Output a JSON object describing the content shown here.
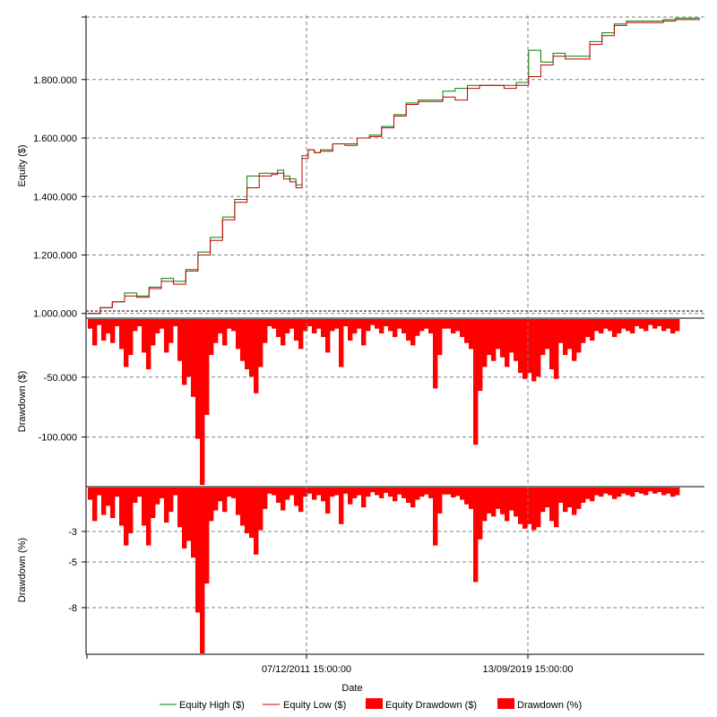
{
  "chart_data": [
    {
      "type": "line",
      "panel": "equity",
      "ylabel": "Equity ($)",
      "ylim": [
        990000,
        2020000
      ],
      "yticks": [
        1000000,
        1200000,
        1400000,
        1600000,
        1800000
      ],
      "ytick_labels": [
        "1.000.000",
        "1.200.000",
        "1.400.000",
        "1.600.000",
        "1.800.000"
      ],
      "x": [
        0,
        2,
        4,
        6,
        8,
        10,
        12,
        14,
        16,
        18,
        20,
        22,
        24,
        26,
        28,
        30,
        31,
        32,
        33,
        34,
        35,
        36,
        37,
        38,
        40,
        42,
        44,
        46,
        48,
        50,
        52,
        54,
        56,
        58,
        60,
        62,
        64,
        66,
        68,
        70,
        72,
        74,
        76,
        78,
        80,
        82,
        84,
        86,
        88,
        90,
        92,
        94,
        96,
        98,
        100
      ],
      "series": [
        {
          "name": "Equity High ($)",
          "color": "#008000",
          "values": [
            1000000,
            1020000,
            1040000,
            1070000,
            1060000,
            1090000,
            1120000,
            1110000,
            1150000,
            1210000,
            1260000,
            1330000,
            1390000,
            1470000,
            1480000,
            1480000,
            1490000,
            1470000,
            1460000,
            1440000,
            1540000,
            1560000,
            1550000,
            1560000,
            1580000,
            1580000,
            1600000,
            1610000,
            1640000,
            1680000,
            1720000,
            1730000,
            1730000,
            1760000,
            1770000,
            1780000,
            1780000,
            1780000,
            1780000,
            1790000,
            1900000,
            1860000,
            1890000,
            1880000,
            1880000,
            1930000,
            1960000,
            1990000,
            2000000,
            2000000,
            2000000,
            2005000,
            2010000,
            2010000,
            2010000
          ]
        },
        {
          "name": "Equity Low ($)",
          "color": "#c00000",
          "values": [
            1000000,
            1020000,
            1040000,
            1060000,
            1055000,
            1085000,
            1110000,
            1100000,
            1145000,
            1200000,
            1250000,
            1320000,
            1380000,
            1430000,
            1470000,
            1475000,
            1480000,
            1460000,
            1450000,
            1430000,
            1530000,
            1560000,
            1550000,
            1555000,
            1580000,
            1575000,
            1600000,
            1605000,
            1635000,
            1675000,
            1715000,
            1725000,
            1725000,
            1740000,
            1730000,
            1770000,
            1780000,
            1780000,
            1770000,
            1780000,
            1810000,
            1850000,
            1880000,
            1870000,
            1870000,
            1920000,
            1950000,
            1985000,
            1995000,
            1995000,
            1995000,
            2000000,
            2005000,
            2005000,
            2005000
          ]
        }
      ]
    },
    {
      "type": "bar",
      "panel": "drawdown_dollars",
      "ylabel": "Drawdown ($)",
      "ylim": [
        -140000,
        0
      ],
      "yticks": [
        -50000,
        -100000
      ],
      "ytick_labels": [
        "-50.000",
        "-100.000"
      ],
      "series": [
        {
          "name": "Equity Drawdown ($)",
          "color": "#ff0000",
          "values": [
            -8000,
            -22000,
            -5000,
            -18000,
            -12000,
            -20000,
            -6000,
            -25000,
            -40000,
            -30000,
            -10000,
            -6000,
            -28000,
            -42000,
            -22000,
            -12000,
            -8000,
            -28000,
            -20000,
            -6000,
            -35000,
            -55000,
            -48000,
            -65000,
            -100000,
            -140000,
            -80000,
            -30000,
            -20000,
            -12000,
            -22000,
            -8000,
            -10000,
            -25000,
            -35000,
            -42000,
            -48000,
            -62000,
            -40000,
            -20000,
            -6000,
            -8000,
            -15000,
            -22000,
            -12000,
            -8000,
            -18000,
            -25000,
            -10000,
            -6000,
            -12000,
            -8000,
            -15000,
            -28000,
            -10000,
            -8000,
            -40000,
            -6000,
            -18000,
            -12000,
            -8000,
            -22000,
            -10000,
            -5000,
            -8000,
            -12000,
            -6000,
            -10000,
            -15000,
            -8000,
            -12000,
            -18000,
            -22000,
            -14000,
            -10000,
            -8000,
            -12000,
            -58000,
            -30000,
            -8000,
            -8000,
            -12000,
            -10000,
            -15000,
            -20000,
            -25000,
            -105000,
            -60000,
            -40000,
            -30000,
            -35000,
            -25000,
            -32000,
            -40000,
            -28000,
            -35000,
            -45000,
            -50000,
            -45000,
            -52000,
            -48000,
            -30000,
            -25000,
            -42000,
            -50000,
            -20000,
            -30000,
            -25000,
            -35000,
            -28000,
            -20000,
            -15000,
            -18000,
            -10000,
            -12000,
            -8000,
            -10000,
            -15000,
            -12000,
            -8000,
            -10000,
            -12000,
            -6000,
            -8000,
            -10000,
            -5000,
            -8000,
            -6000,
            -10000,
            -8000,
            -12000,
            -10000
          ]
        }
      ]
    },
    {
      "type": "bar",
      "panel": "drawdown_percent",
      "ylabel": "Drawdown (%)",
      "ylim": [
        -11,
        0
      ],
      "yticks": [
        -3,
        -5,
        -8
      ],
      "ytick_labels": [
        "-3",
        "-5",
        "-8"
      ],
      "series": [
        {
          "name": "Drawdown (%)",
          "color": "#ff0000",
          "values": [
            -0.8,
            -2.2,
            -0.5,
            -1.8,
            -1.2,
            -2.0,
            -0.6,
            -2.5,
            -3.8,
            -3.0,
            -1.0,
            -0.6,
            -2.5,
            -3.8,
            -2.0,
            -1.1,
            -0.7,
            -2.3,
            -1.6,
            -0.5,
            -2.6,
            -4.0,
            -3.5,
            -4.6,
            -8.2,
            -11.0,
            -6.3,
            -2.2,
            -1.5,
            -0.9,
            -1.6,
            -0.6,
            -0.7,
            -1.8,
            -2.5,
            -3.0,
            -3.3,
            -4.4,
            -2.8,
            -1.4,
            -0.4,
            -0.5,
            -1.0,
            -1.5,
            -0.8,
            -0.5,
            -1.2,
            -1.6,
            -0.6,
            -0.4,
            -0.8,
            -0.5,
            -0.9,
            -1.7,
            -0.6,
            -0.5,
            -2.4,
            -0.4,
            -1.1,
            -0.7,
            -0.5,
            -1.3,
            -0.6,
            -0.3,
            -0.5,
            -0.7,
            -0.35,
            -0.6,
            -0.9,
            -0.45,
            -0.7,
            -1.0,
            -1.3,
            -0.8,
            -0.6,
            -0.45,
            -0.7,
            -3.8,
            -1.7,
            -0.45,
            -0.45,
            -0.65,
            -0.55,
            -0.8,
            -1.1,
            -1.4,
            -6.2,
            -3.4,
            -2.2,
            -1.7,
            -1.9,
            -1.4,
            -1.75,
            -2.2,
            -1.5,
            -1.9,
            -2.4,
            -2.7,
            -2.4,
            -2.8,
            -2.6,
            -1.6,
            -1.3,
            -2.2,
            -2.6,
            -1.0,
            -1.6,
            -1.3,
            -1.8,
            -1.4,
            -1.0,
            -0.75,
            -0.9,
            -0.5,
            -0.6,
            -0.4,
            -0.5,
            -0.75,
            -0.6,
            -0.4,
            -0.5,
            -0.6,
            -0.3,
            -0.4,
            -0.5,
            -0.25,
            -0.4,
            -0.3,
            -0.5,
            -0.4,
            -0.6,
            -0.5
          ]
        }
      ]
    }
  ],
  "x_axis": {
    "label": "Date",
    "tick_labels": [
      "07/12/2011 15:00:00",
      "13/09/2019 15:00:00"
    ]
  },
  "legend": {
    "placement": "bottom",
    "items": [
      {
        "label": "Equity High ($)",
        "kind": "line",
        "color": "#008000"
      },
      {
        "label": "Equity Low ($)",
        "kind": "line",
        "color": "#c00000"
      },
      {
        "label": "Equity Drawdown ($)",
        "kind": "box",
        "color": "#ff0000"
      },
      {
        "label": "Drawdown (%)",
        "kind": "box",
        "color": "#ff0000"
      }
    ]
  }
}
